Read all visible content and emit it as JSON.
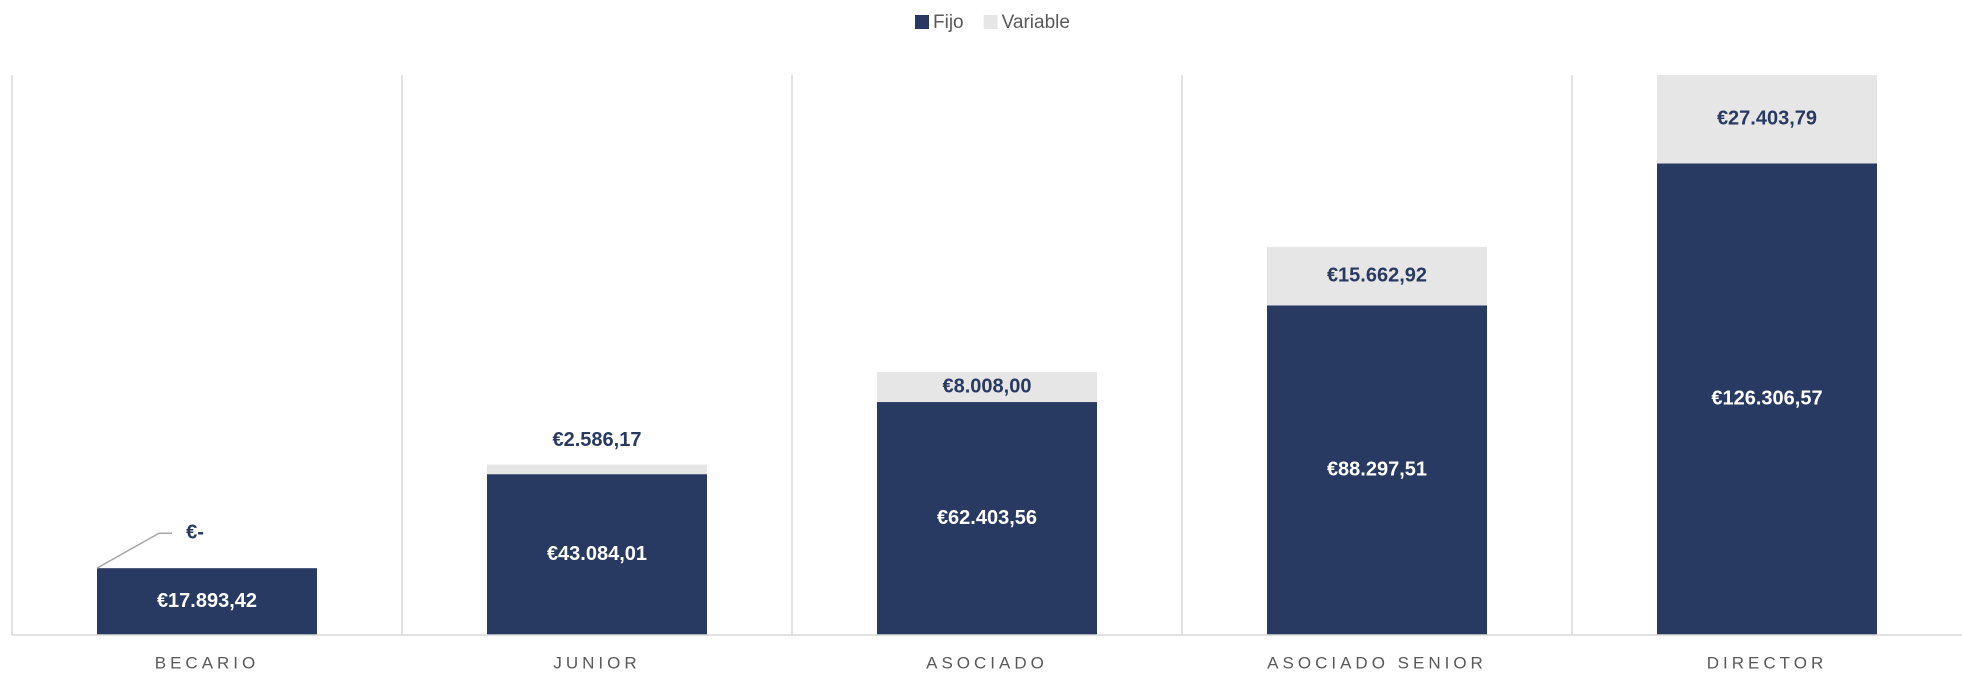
{
  "chart_data": {
    "type": "bar",
    "stacked": true,
    "categories": [
      "BECARIO",
      "JUNIOR",
      "ASOCIADO",
      "ASOCIADO SENIOR",
      "DIRECTOR"
    ],
    "series": [
      {
        "name": "Fijo",
        "color": "#283a62",
        "values": [
          17893.42,
          43084.01,
          62403.56,
          88297.51,
          126306.57
        ],
        "value_labels": [
          "€17.893,42",
          "€43.084,01",
          "€62.403,56",
          "€88.297,51",
          "€126.306,57"
        ]
      },
      {
        "name": "Variable",
        "color": "#e7e6e6",
        "values": [
          0,
          2586.17,
          8008.0,
          15662.92,
          27403.79
        ],
        "value_labels": [
          "€-",
          "€2.586,17",
          "€8.008,00",
          "€15.662,92",
          "€27.403,79"
        ]
      }
    ],
    "ylim": [
      0,
      150000
    ],
    "legend": "top"
  }
}
